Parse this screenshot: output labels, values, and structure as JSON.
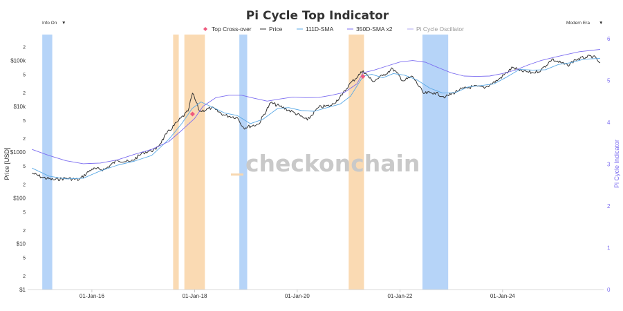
{
  "header": {
    "info_menu": "Info On",
    "era_menu": "Modern Era",
    "dropdown_glyph": "▼"
  },
  "watermark": "checkonchain",
  "colors": {
    "price": "#333333",
    "sma111": "#5aa9e6",
    "sma350x2": "#7b6cf0",
    "oscillator": "#b0a8f2",
    "crossover": "#ee5a7e",
    "top_band": "#f9d4a6",
    "bottom_band": "#a9cdf7",
    "right_axis": "#7b6cf0"
  },
  "chart_data": {
    "type": "line",
    "title": "Pi Cycle Top Indicator",
    "ylabel": "Price [USD]",
    "ylabel_right": "Pi Cycle Indicator",
    "y_scale": "log",
    "ylim": [
      1,
      300000
    ],
    "ylim_right": [
      0,
      6
    ],
    "grid": false,
    "legend_position": "top-center",
    "legend": [
      {
        "name": "Top Cross-over",
        "symbol": "diamond",
        "color": "#ee5a7e"
      },
      {
        "name": "Price",
        "symbol": "line",
        "color": "#333333"
      },
      {
        "name": "111D-SMA",
        "symbol": "line",
        "color": "#5aa9e6"
      },
      {
        "name": "350D-SMA x2",
        "symbol": "line",
        "color": "#7b6cf0"
      },
      {
        "name": "Pi Cycle Oscillator",
        "symbol": "line",
        "color": "#b0a8f2",
        "hidden": true
      }
    ],
    "x_ticks": [
      "01-Jan-16",
      "01-Jan-18",
      "01-Jan-20",
      "01-Jan-22",
      "01-Jan-24"
    ],
    "y_ticks_major": [
      "$1",
      "$10",
      "$100",
      "$1000",
      "$10k",
      "$100k"
    ],
    "y_ticks_minor_labels": [
      "2",
      "5"
    ],
    "y_ticks_right": [
      "0",
      "1",
      "2",
      "3",
      "4",
      "5",
      "6"
    ],
    "series": [
      {
        "name": "Price",
        "x": [
          "2014-11-01",
          "2015-01-15",
          "2015-04-01",
          "2015-07-01",
          "2015-10-01",
          "2016-01-01",
          "2016-04-01",
          "2016-07-01",
          "2016-10-01",
          "2017-01-01",
          "2017-04-01",
          "2017-06-15",
          "2017-09-01",
          "2017-11-15",
          "2017-12-17",
          "2018-02-06",
          "2018-05-01",
          "2018-08-01",
          "2018-11-01",
          "2018-12-15",
          "2019-04-01",
          "2019-06-26",
          "2019-09-01",
          "2019-12-15",
          "2020-03-13",
          "2020-06-01",
          "2020-09-01",
          "2020-11-15",
          "2021-01-01",
          "2021-04-14",
          "2021-06-20",
          "2021-09-01",
          "2021-11-10",
          "2022-01-24",
          "2022-04-01",
          "2022-06-18",
          "2022-09-01",
          "2022-11-21",
          "2023-03-01",
          "2023-06-01",
          "2023-09-01",
          "2023-12-01",
          "2024-03-14",
          "2024-05-01",
          "2024-08-05",
          "2024-10-01",
          "2024-12-17",
          "2025-04-08",
          "2025-06-01",
          "2025-08-15",
          "2025-10-06",
          "2025-11-25"
        ],
        "values": [
          350,
          280,
          250,
          270,
          250,
          430,
          420,
          670,
          610,
          980,
          1150,
          2500,
          4600,
          7800,
          19500,
          7700,
          9300,
          6400,
          5700,
          3400,
          4100,
          12000,
          10000,
          7200,
          5000,
          9500,
          10500,
          17500,
          29000,
          60000,
          35000,
          47000,
          67000,
          36000,
          45000,
          19000,
          20000,
          16000,
          23000,
          27000,
          26000,
          38000,
          71000,
          60000,
          54000,
          62000,
          106000,
          78000,
          104000,
          118000,
          124000,
          89000
        ]
      },
      {
        "name": "111D-SMA",
        "x": [
          "2014-11-01",
          "2015-03-01",
          "2015-07-01",
          "2015-11-01",
          "2016-03-01",
          "2016-07-01",
          "2016-11-01",
          "2017-03-01",
          "2017-07-01",
          "2017-10-01",
          "2017-12-15",
          "2018-02-15",
          "2018-05-01",
          "2018-08-01",
          "2018-11-01",
          "2019-02-01",
          "2019-05-01",
          "2019-08-15",
          "2019-11-01",
          "2020-02-01",
          "2020-05-01",
          "2020-08-01",
          "2020-11-01",
          "2021-01-15",
          "2021-04-15",
          "2021-06-15",
          "2021-09-01",
          "2021-11-15",
          "2022-02-01",
          "2022-05-01",
          "2022-08-01",
          "2022-11-01",
          "2023-02-01",
          "2023-05-01",
          "2023-08-01",
          "2023-11-01",
          "2024-02-01",
          "2024-05-01",
          "2024-08-01",
          "2024-11-01",
          "2025-02-01",
          "2025-05-01",
          "2025-08-01",
          "2025-11-25"
        ],
        "values": [
          450,
          300,
          260,
          270,
          390,
          520,
          640,
          850,
          1900,
          4200,
          9000,
          12500,
          9800,
          7200,
          6300,
          4200,
          5200,
          9000,
          9400,
          8100,
          7800,
          9400,
          11200,
          16800,
          46000,
          50000,
          42000,
          52000,
          48000,
          38000,
          25000,
          19500,
          20000,
          26500,
          28500,
          31000,
          44000,
          64000,
          62000,
          63000,
          82000,
          90000,
          107000,
          112000
        ]
      },
      {
        "name": "350D-SMA x2",
        "x": [
          "2014-11-01",
          "2015-03-01",
          "2015-07-01",
          "2015-11-01",
          "2016-03-01",
          "2016-07-01",
          "2016-11-01",
          "2017-03-01",
          "2017-07-01",
          "2017-10-01",
          "2017-12-31",
          "2018-03-01",
          "2018-06-01",
          "2018-09-01",
          "2018-12-01",
          "2019-03-01",
          "2019-06-01",
          "2019-09-01",
          "2019-12-01",
          "2020-03-01",
          "2020-06-01",
          "2020-09-01",
          "2020-12-01",
          "2021-03-01",
          "2021-04-12",
          "2021-07-01",
          "2021-10-01",
          "2022-01-01",
          "2022-04-01",
          "2022-07-01",
          "2022-10-01",
          "2023-01-01",
          "2023-04-01",
          "2023-07-01",
          "2023-10-01",
          "2024-01-01",
          "2024-04-01",
          "2024-07-01",
          "2024-10-01",
          "2025-01-01",
          "2025-04-01",
          "2025-07-01",
          "2025-11-25"
        ],
        "values": [
          1150,
          850,
          650,
          560,
          580,
          680,
          900,
          1150,
          1700,
          3000,
          5400,
          10000,
          15500,
          17500,
          17500,
          15000,
          13000,
          14500,
          16000,
          15500,
          15600,
          17500,
          20200,
          31000,
          54000,
          62000,
          76000,
          93000,
          100000,
          92000,
          70000,
          54000,
          46000,
          45000,
          46000,
          52000,
          62000,
          80000,
          100000,
          118000,
          136000,
          156000,
          175000
        ]
      }
    ],
    "markers": [
      {
        "name": "Top Cross-over",
        "dates": [
          "2017-12-17",
          "2021-04-12"
        ],
        "values": [
          6800,
          45000
        ]
      }
    ],
    "bands": [
      {
        "kind": "bottom",
        "start": "2015-01-13",
        "end": "2015-03-25"
      },
      {
        "kind": "top",
        "start": "2017-08-01",
        "end": "2017-09-10"
      },
      {
        "kind": "top",
        "start": "2017-10-20",
        "end": "2018-03-15"
      },
      {
        "kind": "bottom",
        "start": "2018-11-15",
        "end": "2019-01-10"
      },
      {
        "kind": "top",
        "start": "2021-01-01",
        "end": "2021-04-20"
      },
      {
        "kind": "bottom",
        "start": "2022-06-10",
        "end": "2022-12-10"
      }
    ]
  }
}
